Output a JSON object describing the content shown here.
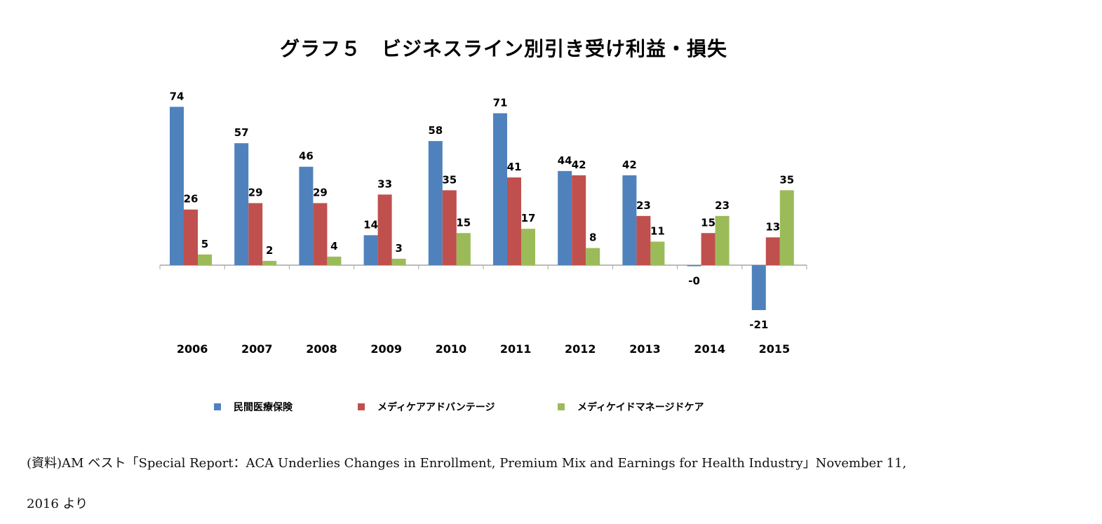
{
  "chart_data": {
    "type": "bar",
    "title": "グラフ５　ビジネスライン別引き受け利益・損失",
    "xlabel": "",
    "ylabel": "",
    "categories": [
      "2006",
      "2007",
      "2008",
      "2009",
      "2010",
      "2011",
      "2012",
      "2013",
      "2014",
      "2015"
    ],
    "series": [
      {
        "name": "民間医療保険",
        "color": "#4f81bd",
        "values": [
          74,
          57,
          46,
          14,
          58,
          71,
          44,
          42,
          -0.5,
          -21
        ],
        "labels": [
          "74",
          "57",
          "46",
          "14",
          "58",
          "71",
          "44",
          "42",
          "-0",
          "-21"
        ]
      },
      {
        "name": "メディケアアドバンテージ",
        "color": "#c0504d",
        "values": [
          26,
          29,
          29,
          33,
          35,
          41,
          42,
          23,
          15,
          13
        ],
        "labels": [
          "26",
          "29",
          "29",
          "33",
          "35",
          "41",
          "42",
          "23",
          "15",
          "13"
        ]
      },
      {
        "name": "メディケイドマネージドケア",
        "color": "#9bbb59",
        "values": [
          5,
          2,
          4,
          3,
          15,
          17,
          8,
          11,
          23,
          35
        ],
        "labels": [
          "5",
          "2",
          "4",
          "3",
          "15",
          "17",
          "8",
          "11",
          "23",
          "35"
        ]
      }
    ],
    "ylim": [
      -21,
      74
    ],
    "grid": false,
    "y_axis_visible": false,
    "legend_position": "bottom"
  },
  "source": {
    "line1": "(資料)AM ベスト「Special Report：ACA Underlies Changes in Enrollment, Premium Mix and Earnings for Health Industry」November 11,",
    "line2": "2016 より"
  }
}
